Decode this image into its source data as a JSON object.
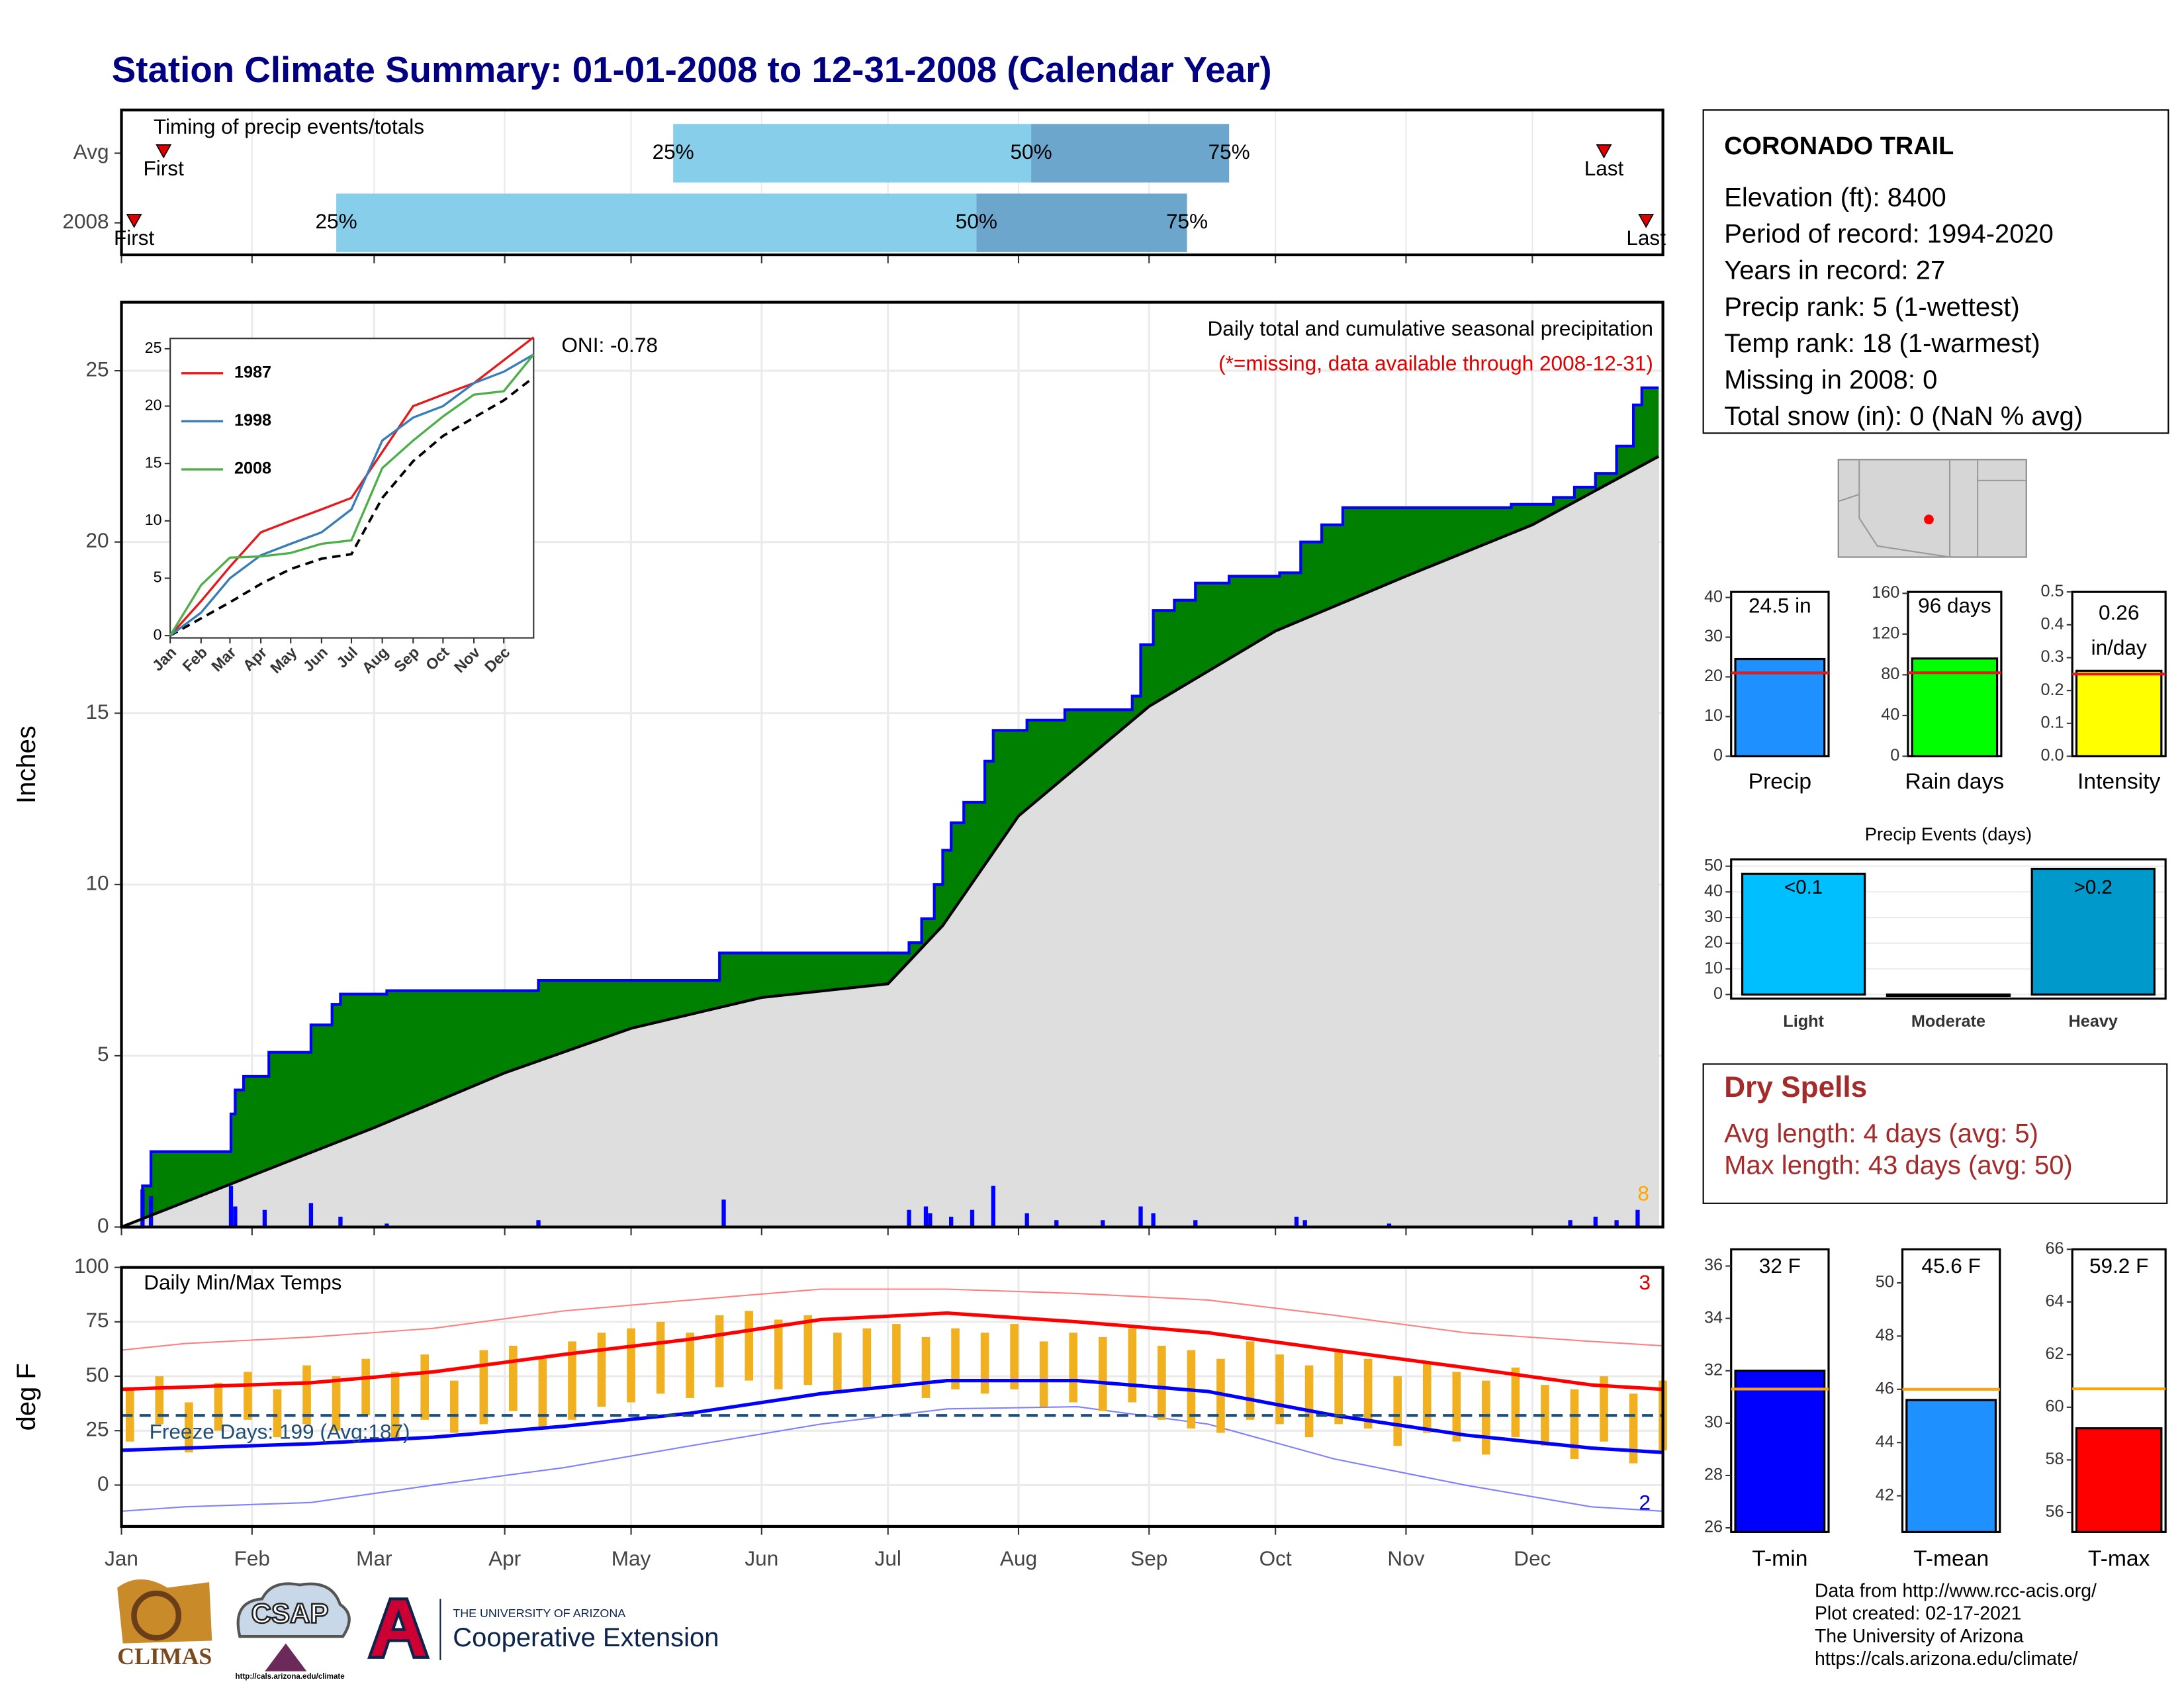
{
  "title": "Station Climate Summary: 01-01-2008 to 12-31-2008 (Calendar Year)",
  "timing": {
    "type": "timing",
    "title": "Timing of precip events/totals",
    "xlim": [
      0,
      366
    ],
    "rows": [
      "Avg",
      "2008"
    ],
    "first": [
      10,
      3
    ],
    "p25": [
      131,
      51
    ],
    "p50": [
      216,
      203
    ],
    "p75": [
      263,
      253
    ],
    "last": [
      352,
      362
    ],
    "labels": {
      "first": "First",
      "last": "Last",
      "p25": "25%",
      "p50": "50%",
      "p75": "75%"
    },
    "colors": {
      "low": "#87ceeb",
      "high": "#6ca6cd",
      "marker": "#e00000"
    }
  },
  "precip": {
    "type": "cumulative-area",
    "y_label": "Inches",
    "xlim": [
      0,
      366
    ],
    "ylim": [
      0,
      27
    ],
    "yticks": [
      0,
      5,
      10,
      15,
      20,
      25
    ],
    "grid": true,
    "oni": "ONI: -0.78",
    "subtitle": "Daily total and cumulative seasonal precipitation",
    "note": "(*=missing, data available through 2008-12-31)",
    "corner_count": "8",
    "observed": {
      "color": "#008000",
      "line_color": "#0000ff",
      "x": [
        0,
        5,
        7,
        26,
        27,
        29,
        35,
        45,
        50,
        52,
        63,
        99,
        142,
        187,
        190,
        193,
        195,
        197,
        200,
        205,
        207,
        215,
        224,
        240,
        242,
        245,
        250,
        255,
        263,
        275,
        280,
        285,
        290,
        330,
        340,
        345,
        350,
        355,
        359,
        361,
        365
      ],
      "values": [
        0,
        1.2,
        2.2,
        3.3,
        4.0,
        4.4,
        5.1,
        5.9,
        6.5,
        6.8,
        6.9,
        7.2,
        8.0,
        8.3,
        9.0,
        10.0,
        11.0,
        11.8,
        12.4,
        13.6,
        14.5,
        14.8,
        15.1,
        15.5,
        17.0,
        18.0,
        18.3,
        18.8,
        19.0,
        19.1,
        20.0,
        20.5,
        21.0,
        21.1,
        21.3,
        21.6,
        22.0,
        22.8,
        24.0,
        24.5,
        24.5
      ]
    },
    "average": {
      "color": "#dedede",
      "line_color": "#000000",
      "x": [
        0,
        31,
        60,
        91,
        121,
        152,
        182,
        195,
        213,
        244,
        274,
        305,
        335,
        365
      ],
      "values": [
        0,
        1.5,
        2.9,
        4.5,
        5.8,
        6.7,
        7.1,
        8.8,
        12.0,
        15.2,
        17.4,
        19.0,
        20.5,
        22.5
      ]
    },
    "daily": {
      "color": "#0000ff",
      "x": [
        5,
        7,
        26,
        27,
        34,
        45,
        52,
        63,
        99,
        143,
        187,
        191,
        192,
        197,
        202,
        207,
        215,
        222,
        233,
        242,
        245,
        255,
        279,
        281,
        301,
        344,
        350,
        355,
        360
      ],
      "values": [
        1.1,
        0.9,
        1.2,
        0.6,
        0.5,
        0.7,
        0.3,
        0.1,
        0.2,
        0.8,
        0.5,
        0.6,
        0.4,
        0.3,
        0.5,
        1.2,
        0.4,
        0.2,
        0.2,
        0.6,
        0.4,
        0.2,
        0.3,
        0.2,
        0.1,
        0.2,
        0.3,
        0.2,
        0.5
      ]
    }
  },
  "inset": {
    "type": "line",
    "xlim": [
      0,
      365
    ],
    "ylim": [
      -0.2,
      25.9
    ],
    "yticks": [
      0,
      5,
      10,
      15,
      20,
      25
    ],
    "x": [
      0,
      31,
      60,
      91,
      121,
      152,
      182,
      213,
      244,
      274,
      305,
      335,
      365
    ],
    "series": [
      {
        "name": "1987",
        "color": "#e41a1c",
        "values": [
          0,
          3,
          6,
          9,
          10,
          11,
          12,
          16,
          20,
          21,
          22,
          24,
          26
        ]
      },
      {
        "name": "1998",
        "color": "#377eb8",
        "values": [
          0,
          2,
          5,
          7,
          8,
          9,
          11,
          17,
          19,
          20,
          22,
          23,
          24.5
        ]
      },
      {
        "name": "2008",
        "color": "#4daf4a",
        "values": [
          0,
          4.4,
          6.8,
          6.9,
          7.2,
          8.0,
          8.3,
          14.6,
          17.0,
          19.1,
          21.0,
          21.3,
          24.5
        ]
      }
    ],
    "average": {
      "color": "#000000",
      "values": [
        0,
        1.5,
        2.9,
        4.5,
        5.8,
        6.7,
        7.1,
        12.0,
        15.2,
        17.4,
        19.0,
        20.5,
        22.5
      ]
    }
  },
  "temps": {
    "type": "temperature",
    "y_label": "deg F",
    "title": "Daily Min/Max Temps",
    "xlim": [
      0,
      366
    ],
    "ylim": [
      -19,
      100
    ],
    "yticks": [
      0,
      25,
      50,
      75,
      100
    ],
    "grid": true,
    "xticks": [
      {
        "value": 0,
        "label": "Jan"
      },
      {
        "value": 31,
        "label": "Feb"
      },
      {
        "value": 60,
        "label": "Mar"
      },
      {
        "value": 91,
        "label": "Apr"
      },
      {
        "value": 121,
        "label": "May"
      },
      {
        "value": 152,
        "label": "Jun"
      },
      {
        "value": 182,
        "label": "Jul"
      },
      {
        "value": 213,
        "label": "Aug"
      },
      {
        "value": 244,
        "label": "Sep"
      },
      {
        "value": 274,
        "label": "Oct"
      },
      {
        "value": 305,
        "label": "Nov"
      },
      {
        "value": 335,
        "label": "Dec"
      }
    ],
    "freeze": 32,
    "freeze_label": "Freeze Days: 199 (Avg:187)",
    "high_count": "3",
    "low_count": "2",
    "daily": {
      "color": "#f0b020",
      "x": [
        2,
        9,
        16,
        23,
        30,
        37,
        44,
        51,
        58,
        65,
        72,
        79,
        86,
        93,
        100,
        107,
        114,
        121,
        128,
        135,
        142,
        149,
        156,
        163,
        170,
        177,
        184,
        191,
        198,
        205,
        212,
        219,
        226,
        233,
        240,
        247,
        254,
        261,
        268,
        275,
        282,
        289,
        296,
        303,
        310,
        317,
        324,
        331,
        338,
        345,
        352,
        359,
        366
      ],
      "tmax": [
        45,
        50,
        38,
        47,
        52,
        44,
        55,
        50,
        58,
        52,
        60,
        48,
        62,
        64,
        58,
        66,
        70,
        72,
        75,
        70,
        78,
        80,
        76,
        78,
        70,
        72,
        74,
        68,
        72,
        70,
        74,
        66,
        70,
        68,
        72,
        64,
        62,
        58,
        66,
        60,
        55,
        62,
        58,
        50,
        56,
        52,
        48,
        54,
        46,
        44,
        50,
        42,
        48
      ],
      "tmin": [
        20,
        28,
        15,
        25,
        30,
        22,
        28,
        25,
        32,
        20,
        30,
        24,
        28,
        34,
        26,
        30,
        36,
        38,
        42,
        40,
        45,
        48,
        44,
        46,
        42,
        44,
        46,
        40,
        44,
        42,
        44,
        36,
        38,
        34,
        38,
        30,
        26,
        24,
        30,
        28,
        22,
        28,
        26,
        18,
        24,
        20,
        14,
        22,
        18,
        12,
        20,
        10,
        16
      ]
    },
    "normals_x": [
      0,
      15,
      45,
      74,
      105,
      135,
      166,
      196,
      227,
      258,
      288,
      319,
      349,
      366
    ],
    "avg_max": {
      "color": "#ff0000",
      "values": [
        44,
        45,
        47,
        52,
        60,
        67,
        76,
        79,
        75,
        70,
        62,
        54,
        46,
        44
      ]
    },
    "avg_min": {
      "color": "#0000ff",
      "values": [
        16,
        17,
        19,
        22,
        27,
        33,
        42,
        48,
        48,
        43,
        32,
        23,
        17,
        15
      ]
    },
    "rec_max": {
      "color": "#ff8080",
      "values": [
        62,
        65,
        68,
        72,
        80,
        85,
        90,
        90,
        88,
        85,
        78,
        70,
        66,
        64
      ]
    },
    "rec_min": {
      "color": "#8080ff",
      "values": [
        -12,
        -10,
        -8,
        0,
        8,
        18,
        28,
        35,
        36,
        28,
        12,
        0,
        -10,
        -12
      ]
    }
  },
  "station": {
    "name": "CORONADO TRAIL",
    "lines": [
      "Elevation (ft): 8400",
      "Period of record: 1994-2020",
      "Years in record: 27",
      "Precip rank: 5 (1-wettest)",
      "Temp rank: 18 (1-warmest)",
      "Missing in 2008: 0",
      "Total snow (in): 0 (NaN % avg)"
    ]
  },
  "summary_bars": [
    {
      "type": "single-bar",
      "category": "Precip",
      "value": 24.5,
      "value_labels": [
        "24.5 in"
      ],
      "avg": 21,
      "ylim": [
        0,
        41.4
      ],
      "yticks": [
        0,
        10,
        20,
        30,
        40
      ],
      "color": "#1e90ff",
      "avg_color": "#e41a1c"
    },
    {
      "type": "single-bar",
      "category": "Rain days",
      "value": 96,
      "value_labels": [
        "96 days"
      ],
      "avg": 82,
      "ylim": [
        0,
        161.4
      ],
      "yticks": [
        0,
        40,
        80,
        120,
        160
      ],
      "color": "#00ff00",
      "avg_color": "#e41a1c"
    },
    {
      "type": "single-bar",
      "category": "Intensity",
      "value": 0.26,
      "value_labels": [
        "0.26",
        "in/day"
      ],
      "avg": 0.25,
      "ylim": [
        0,
        0.5
      ],
      "yticks": [
        {
          "value": 0,
          "label": "0.0"
        },
        0.1,
        0.2,
        0.3,
        0.4,
        0.5
      ],
      "color": "#ffff00",
      "avg_color": "#e41a1c"
    }
  ],
  "events": {
    "type": "bar",
    "title": "Precip Events (days)",
    "categories": [
      "Light",
      "Moderate",
      "Heavy"
    ],
    "values": [
      47,
      0,
      49
    ],
    "bar_labels": [
      "<0.1",
      null,
      ">0.2"
    ],
    "colors": [
      "#00bfff",
      "#00bfff",
      "#0099cc"
    ],
    "ylim": [
      -1.6,
      52.7
    ],
    "yticks": [
      0,
      10,
      20,
      30,
      40,
      50
    ]
  },
  "dry_spells": {
    "title": "Dry Spells",
    "lines": [
      "Avg length: 4 days (avg: 5)",
      "Max length: 43 days (avg: 50)"
    ],
    "color": "#a52a2a"
  },
  "temp_bars": [
    {
      "type": "single-bar",
      "category": "T-min",
      "value": 32,
      "value_labels": [
        "32 F"
      ],
      "avg": 31.3,
      "ylim": [
        25.84,
        36.64
      ],
      "yticks": [
        26,
        28,
        30,
        32,
        34,
        36
      ],
      "color": "#0000ff",
      "avg_color": "#ffa500"
    },
    {
      "type": "single-bar",
      "category": "T-mean",
      "value": 45.6,
      "value_labels": [
        "45.6 F"
      ],
      "avg": 46,
      "ylim": [
        40.64,
        51.26
      ],
      "yticks": [
        42,
        44,
        46,
        48,
        50
      ],
      "color": "#1e90ff",
      "avg_color": "#ffa500"
    },
    {
      "type": "single-bar",
      "category": "T-max",
      "value": 59.2,
      "value_labels": [
        "59.2 F"
      ],
      "avg": 60.7,
      "ylim": [
        55.26,
        66
      ],
      "yticks": [
        56,
        58,
        60,
        62,
        64,
        66
      ],
      "color": "#ff0000",
      "avg_color": "#ffa500"
    }
  ],
  "footer": [
    "Data from http://www.rcc-acis.org/",
    "Plot created: 02-17-2021",
    "The University of Arizona",
    "https://cals.arizona.edu/climate/"
  ],
  "logos": {
    "climas": "CLIMAS",
    "csap": "CSAP",
    "csap_url": "http://cals.arizona.edu/climate",
    "ua": "THE UNIVERSITY OF ARIZONA",
    "extension": "Cooperative Extension"
  }
}
